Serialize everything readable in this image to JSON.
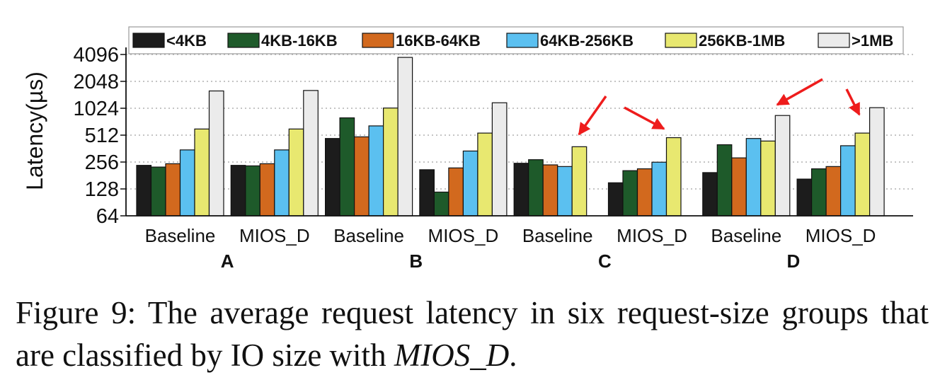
{
  "caption": {
    "text": "Figure 9: The average request latency in six request-size groups that are classified by IO size with ",
    "emph": "MIOS_D",
    "end": "."
  },
  "chart_data": {
    "type": "bar",
    "ylabel": "Latency(µs)",
    "yscale": "log2",
    "ylim": [
      64,
      4096
    ],
    "yticks": [
      64,
      128,
      256,
      512,
      1024,
      2048,
      4096
    ],
    "grid": "horizontal-dotted",
    "legend_position": "top",
    "series_names": [
      "<4KB",
      "4KB-16KB",
      "16KB-64KB",
      "64KB-256KB",
      "256KB-1MB",
      ">1MB"
    ],
    "series_colors": [
      "#1c1c1c",
      "#1e5a2a",
      "#d2691e",
      "#5bc0f0",
      "#e8e870",
      "#ebebeb"
    ],
    "categories": [
      "Baseline",
      "MIOS_D",
      "Baseline",
      "MIOS_D",
      "Baseline",
      "MIOS_D",
      "Baseline",
      "MIOS_D"
    ],
    "workloads": [
      "A",
      "B",
      "C",
      "D"
    ],
    "groups": [
      {
        "workload": "A",
        "label": "Baseline",
        "values": [
          235,
          225,
          245,
          350,
          600,
          1600
        ]
      },
      {
        "workload": "A",
        "label": "MIOS_D",
        "values": [
          235,
          232,
          245,
          350,
          600,
          1620
        ]
      },
      {
        "workload": "B",
        "label": "Baseline",
        "values": [
          470,
          800,
          490,
          650,
          1030,
          3800
        ]
      },
      {
        "workload": "B",
        "label": "MIOS_D",
        "values": [
          210,
          118,
          220,
          340,
          540,
          1180
        ]
      },
      {
        "workload": "C",
        "label": "Baseline",
        "values": [
          248,
          272,
          238,
          228,
          380,
          null
        ]
      },
      {
        "workload": "C",
        "label": "MIOS_D",
        "values": [
          150,
          205,
          215,
          255,
          480,
          null
        ]
      },
      {
        "workload": "D",
        "label": "Baseline",
        "values": [
          195,
          400,
          285,
          470,
          440,
          850
        ]
      },
      {
        "workload": "D",
        "label": "MIOS_D",
        "values": [
          165,
          215,
          228,
          390,
          540,
          1040
        ]
      }
    ],
    "annotations": [
      {
        "type": "arrow",
        "near": "C Baseline 256KB-1MB"
      },
      {
        "type": "arrow",
        "near": "C MIOS_D 256KB-1MB"
      },
      {
        "type": "arrow",
        "near": "D Baseline >1MB"
      },
      {
        "type": "arrow",
        "near": "D MIOS_D 256KB-1MB"
      }
    ]
  }
}
